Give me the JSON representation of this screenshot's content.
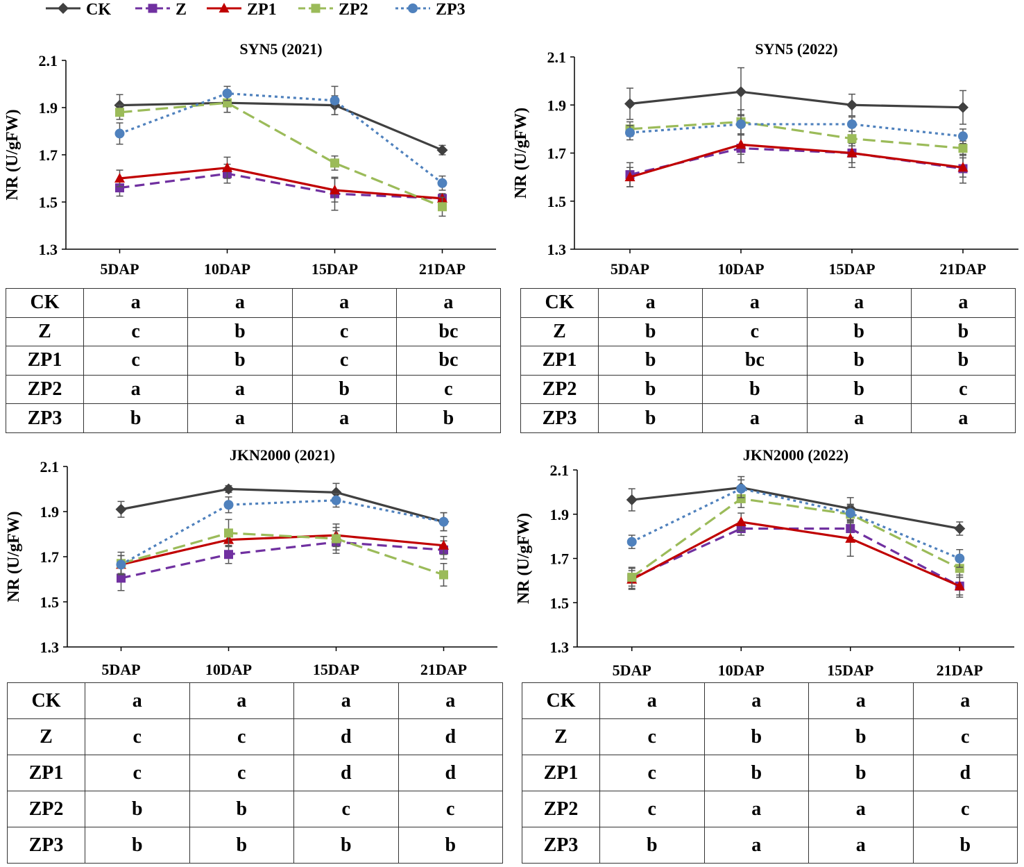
{
  "legend": [
    {
      "name": "CK",
      "color": "#404040",
      "marker": "diamond"
    },
    {
      "name": "Z",
      "color": "#7030a0",
      "marker": "square"
    },
    {
      "name": "ZP1",
      "color": "#c00000",
      "marker": "triangle"
    },
    {
      "name": "ZP2",
      "color": "#9bbb59",
      "marker": "square"
    },
    {
      "name": "ZP3",
      "color": "#4f81bd",
      "marker": "circle"
    }
  ],
  "chart_data": [
    {
      "type": "line",
      "title": "SYN5 (2021)",
      "ylabel": "NR (U/gFW)",
      "xlabel": "",
      "categories": [
        "5DAP",
        "10DAP",
        "15DAP",
        "21DAP"
      ],
      "ylim": [
        1.3,
        2.1
      ],
      "yticks": [
        "1.3",
        "1.5",
        "1.7",
        "1.9",
        "2.1"
      ],
      "series": [
        {
          "name": "CK",
          "values": [
            1.91,
            1.92,
            1.91,
            1.72
          ],
          "errors": [
            0.045,
            0.04,
            0.04,
            0.02
          ]
        },
        {
          "name": "Z",
          "values": [
            1.56,
            1.62,
            1.535,
            1.515
          ],
          "errors": [
            0.035,
            0.04,
            0.07,
            0.02
          ]
        },
        {
          "name": "ZP1",
          "values": [
            1.6,
            1.645,
            1.55,
            1.515
          ],
          "errors": [
            0.035,
            0.045,
            0.05,
            0.02
          ]
        },
        {
          "name": "ZP2",
          "values": [
            1.88,
            1.92,
            1.665,
            1.48
          ],
          "errors": [
            0.03,
            0.04,
            0.03,
            0.04
          ]
        },
        {
          "name": "ZP3",
          "values": [
            1.79,
            1.96,
            1.93,
            1.58
          ],
          "errors": [
            0.045,
            0.03,
            0.06,
            0.03
          ]
        }
      ],
      "letters": {
        "rows": [
          "CK",
          "Z",
          "ZP1",
          "ZP2",
          "ZP3"
        ],
        "values": [
          [
            "a",
            "a",
            "a",
            "a"
          ],
          [
            "c",
            "b",
            "c",
            "bc"
          ],
          [
            "c",
            "b",
            "c",
            "bc"
          ],
          [
            "a",
            "a",
            "b",
            "c"
          ],
          [
            "b",
            "a",
            "a",
            "b"
          ]
        ]
      }
    },
    {
      "type": "line",
      "title": "SYN5 (2022)",
      "ylabel": "NR (U/gFW)",
      "xlabel": "",
      "categories": [
        "5DAP",
        "10DAP",
        "15DAP",
        "21DAP"
      ],
      "ylim": [
        1.3,
        2.1
      ],
      "yticks": [
        "1.3",
        "1.5",
        "1.7",
        "1.9",
        "2.1"
      ],
      "series": [
        {
          "name": "CK",
          "values": [
            1.905,
            1.955,
            1.9,
            1.89
          ],
          "errors": [
            0.065,
            0.1,
            0.045,
            0.07
          ]
        },
        {
          "name": "Z",
          "values": [
            1.61,
            1.72,
            1.7,
            1.635
          ],
          "errors": [
            0.05,
            0.06,
            0.06,
            0.06
          ]
        },
        {
          "name": "ZP1",
          "values": [
            1.6,
            1.735,
            1.7,
            1.64
          ],
          "errors": [
            0.04,
            0.04,
            0.04,
            0.04
          ]
        },
        {
          "name": "ZP2",
          "values": [
            1.8,
            1.83,
            1.76,
            1.72
          ],
          "errors": [
            0.03,
            0.05,
            0.03,
            0.03
          ]
        },
        {
          "name": "ZP3",
          "values": [
            1.785,
            1.82,
            1.82,
            1.77
          ],
          "errors": [
            0.03,
            0.04,
            0.03,
            0.03
          ]
        }
      ],
      "letters": {
        "rows": [
          "CK",
          "Z",
          "ZP1",
          "ZP2",
          "ZP3"
        ],
        "values": [
          [
            "a",
            "a",
            "a",
            "a"
          ],
          [
            "b",
            "c",
            "b",
            "b"
          ],
          [
            "b",
            "bc",
            "b",
            "b"
          ],
          [
            "b",
            "b",
            "b",
            "c"
          ],
          [
            "b",
            "a",
            "a",
            "a"
          ]
        ]
      }
    },
    {
      "type": "line",
      "title": "JKN2000 (2021)",
      "ylabel": "NR (U/gFW)",
      "xlabel": "",
      "categories": [
        "5DAP",
        "10DAP",
        "15DAP",
        "21DAP"
      ],
      "ylim": [
        1.3,
        2.1
      ],
      "yticks": [
        "1.3",
        "1.5",
        "1.7",
        "1.9",
        "2.1"
      ],
      "series": [
        {
          "name": "CK",
          "values": [
            1.91,
            2.0,
            1.985,
            1.855
          ],
          "errors": [
            0.035,
            0.015,
            0.04,
            0.04
          ]
        },
        {
          "name": "Z",
          "values": [
            1.605,
            1.71,
            1.765,
            1.73
          ],
          "errors": [
            0.055,
            0.04,
            0.05,
            0.04
          ]
        },
        {
          "name": "ZP1",
          "values": [
            1.665,
            1.775,
            1.795,
            1.75
          ],
          "errors": [
            0.04,
            0.03,
            0.05,
            0.04
          ]
        },
        {
          "name": "ZP2",
          "values": [
            1.67,
            1.805,
            1.78,
            1.62
          ],
          "errors": [
            0.05,
            0.06,
            0.05,
            0.05
          ]
        },
        {
          "name": "ZP3",
          "values": [
            1.665,
            1.93,
            1.95,
            1.855
          ],
          "errors": [
            0.04,
            0.035,
            0.03,
            0.04
          ]
        }
      ],
      "letters": {
        "rows": [
          "CK",
          "Z",
          "ZP1",
          "ZP2",
          "ZP3"
        ],
        "values": [
          [
            "a",
            "a",
            "a",
            "a"
          ],
          [
            "c",
            "c",
            "d",
            "d"
          ],
          [
            "c",
            "c",
            "d",
            "d"
          ],
          [
            "b",
            "b",
            "c",
            "c"
          ],
          [
            "b",
            "b",
            "b",
            "b"
          ]
        ]
      }
    },
    {
      "type": "line",
      "title": "JKN2000 (2022)",
      "ylabel": "NR (U/gFW)",
      "xlabel": "",
      "categories": [
        "5DAP",
        "10DAP",
        "15DAP",
        "21DAP"
      ],
      "ylim": [
        1.3,
        2.1
      ],
      "yticks": [
        "1.3",
        "1.5",
        "1.7",
        "1.9",
        "2.1"
      ],
      "series": [
        {
          "name": "CK",
          "values": [
            1.965,
            2.02,
            1.925,
            1.835
          ],
          "errors": [
            0.05,
            0.05,
            0.05,
            0.03
          ]
        },
        {
          "name": "Z",
          "values": [
            1.61,
            1.835,
            1.835,
            1.575
          ],
          "errors": [
            0.05,
            0.03,
            0.04,
            0.05
          ]
        },
        {
          "name": "ZP1",
          "values": [
            1.605,
            1.865,
            1.79,
            1.575
          ],
          "errors": [
            0.04,
            0.04,
            0.08,
            0.04
          ]
        },
        {
          "name": "ZP2",
          "values": [
            1.615,
            1.97,
            1.9,
            1.655
          ],
          "errors": [
            0.04,
            0.04,
            0.04,
            0.04
          ]
        },
        {
          "name": "ZP3",
          "values": [
            1.775,
            2.015,
            1.905,
            1.7
          ],
          "errors": [
            0.03,
            0.04,
            0.04,
            0.04
          ]
        }
      ],
      "letters": {
        "rows": [
          "CK",
          "Z",
          "ZP1",
          "ZP2",
          "ZP3"
        ],
        "values": [
          [
            "a",
            "a",
            "a",
            "a"
          ],
          [
            "c",
            "b",
            "b",
            "c"
          ],
          [
            "c",
            "b",
            "b",
            "d"
          ],
          [
            "c",
            "a",
            "a",
            "c"
          ],
          [
            "b",
            "a",
            "a",
            "b"
          ]
        ]
      }
    }
  ]
}
